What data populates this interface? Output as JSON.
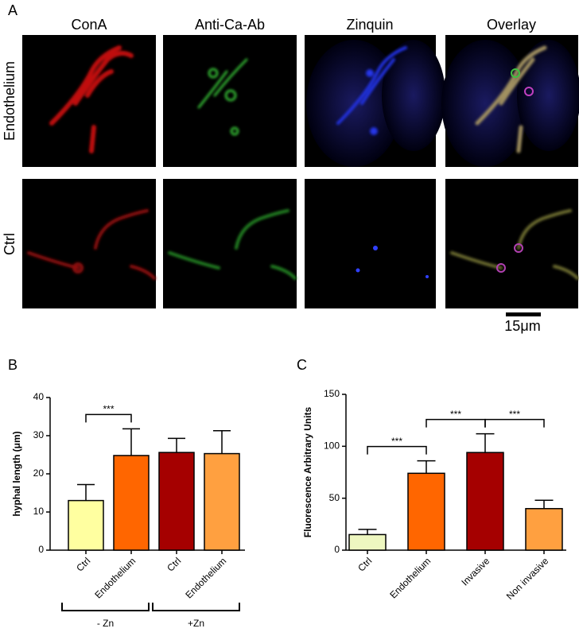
{
  "panel_labels": [
    "A",
    "B",
    "C"
  ],
  "panel_a": {
    "column_titles": [
      "ConA",
      "Anti-Ca-Ab",
      "Zinquin",
      "Overlay"
    ],
    "row_labels": [
      "Endothelium",
      "Ctrl"
    ],
    "scale_bar": "15μm"
  },
  "chart_data": [
    {
      "type": "bar",
      "ylabel": "hyphal length (μm)",
      "categories": [
        "Ctrl",
        "Endothelium",
        "Ctrl",
        "Endothelium"
      ],
      "series": [
        {
          "values": [
            13,
            24.8,
            25.6,
            25.3
          ],
          "errors": [
            4.2,
            7,
            3.7,
            6
          ],
          "colors": [
            "#ffffa0",
            "#ff6600",
            "#a50000",
            "#ffa040"
          ]
        }
      ],
      "ylim": [
        0,
        40
      ],
      "yticks": [
        0,
        10,
        20,
        30,
        40
      ],
      "significance": [
        {
          "between": [
            0,
            1
          ],
          "label": "***"
        }
      ],
      "groups": [
        {
          "label": "- Zn",
          "between": [
            0,
            1
          ]
        },
        {
          "label": "+Zn",
          "between": [
            2,
            3
          ]
        }
      ]
    },
    {
      "type": "bar",
      "ylabel": "Fluorescence Arbitrary Units",
      "categories": [
        "Ctrl",
        "Endothelium",
        "Invasive",
        "Non invasive"
      ],
      "series": [
        {
          "values": [
            15,
            74,
            94,
            40
          ],
          "errors": [
            5,
            12,
            18,
            8
          ],
          "colors": [
            "#eef7c0",
            "#ff6600",
            "#a50000",
            "#ffa040"
          ]
        }
      ],
      "ylim": [
        0,
        150
      ],
      "yticks": [
        0,
        50,
        100,
        150
      ],
      "significance": [
        {
          "between": [
            0,
            1
          ],
          "label": "***"
        },
        {
          "between": [
            1,
            2
          ],
          "label": "***"
        },
        {
          "between": [
            2,
            3
          ],
          "label": "***"
        }
      ]
    }
  ]
}
